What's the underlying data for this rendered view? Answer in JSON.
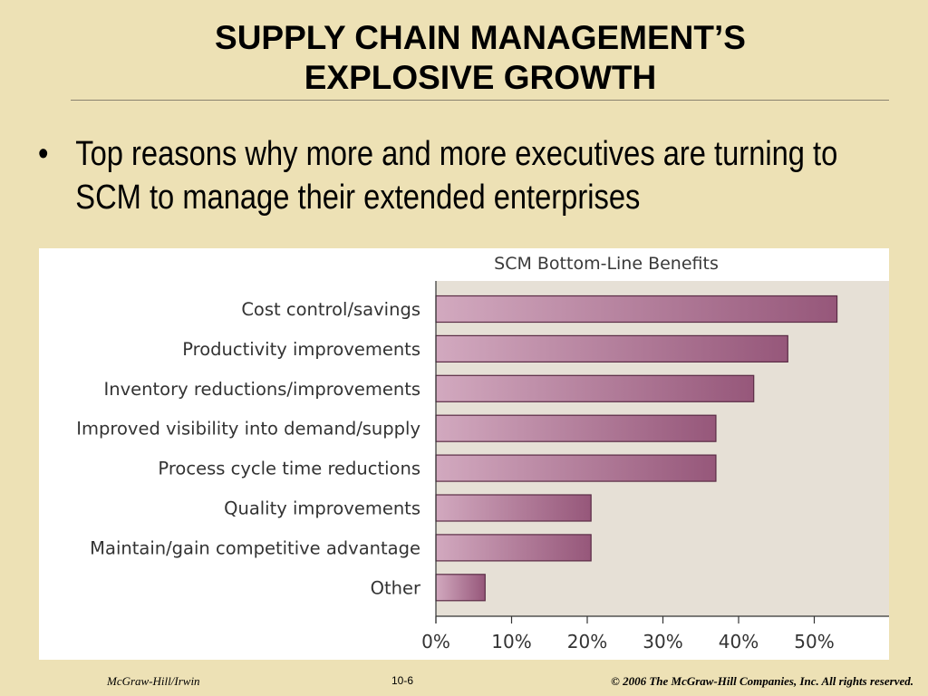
{
  "slide": {
    "title_line1": "SUPPLY CHAIN MANAGEMENT’S",
    "title_line2": "EXPLOSIVE GROWTH",
    "bullet_symbol": "•",
    "bullet_text": "Top reasons why more and more executives are turning to SCM to manage their extended enterprises"
  },
  "footer": {
    "left": "McGraw-Hill/Irwin",
    "center": "10-6",
    "right": "© 2006  The McGraw-Hill Companies, Inc. All rights reserved."
  },
  "colors": {
    "bar_light": "#d2a9bf",
    "bar_dark": "#96577a",
    "plot_bg": "#e6e0d6",
    "background": "#ede1b5"
  },
  "chart_data": {
    "type": "bar",
    "orientation": "horizontal",
    "title": "SCM Bottom-Line Benefits",
    "categories": [
      "Cost control/savings",
      "Productivity improvements",
      "Inventory reductions/improvements",
      "Improved visibility into demand/supply",
      "Process cycle time reductions",
      "Quality improvements",
      "Maintain/gain competitive advantage",
      "Other"
    ],
    "values": [
      53,
      46.5,
      42,
      37,
      37,
      20.5,
      20.5,
      6.5
    ],
    "xlim": [
      0,
      60
    ],
    "xticks": [
      0,
      10,
      20,
      30,
      40,
      50
    ],
    "xtick_labels": [
      "0%",
      "10%",
      "20%",
      "30%",
      "40%",
      "50%"
    ],
    "xlabel": "",
    "ylabel": "",
    "grid": false,
    "legend": "none"
  }
}
